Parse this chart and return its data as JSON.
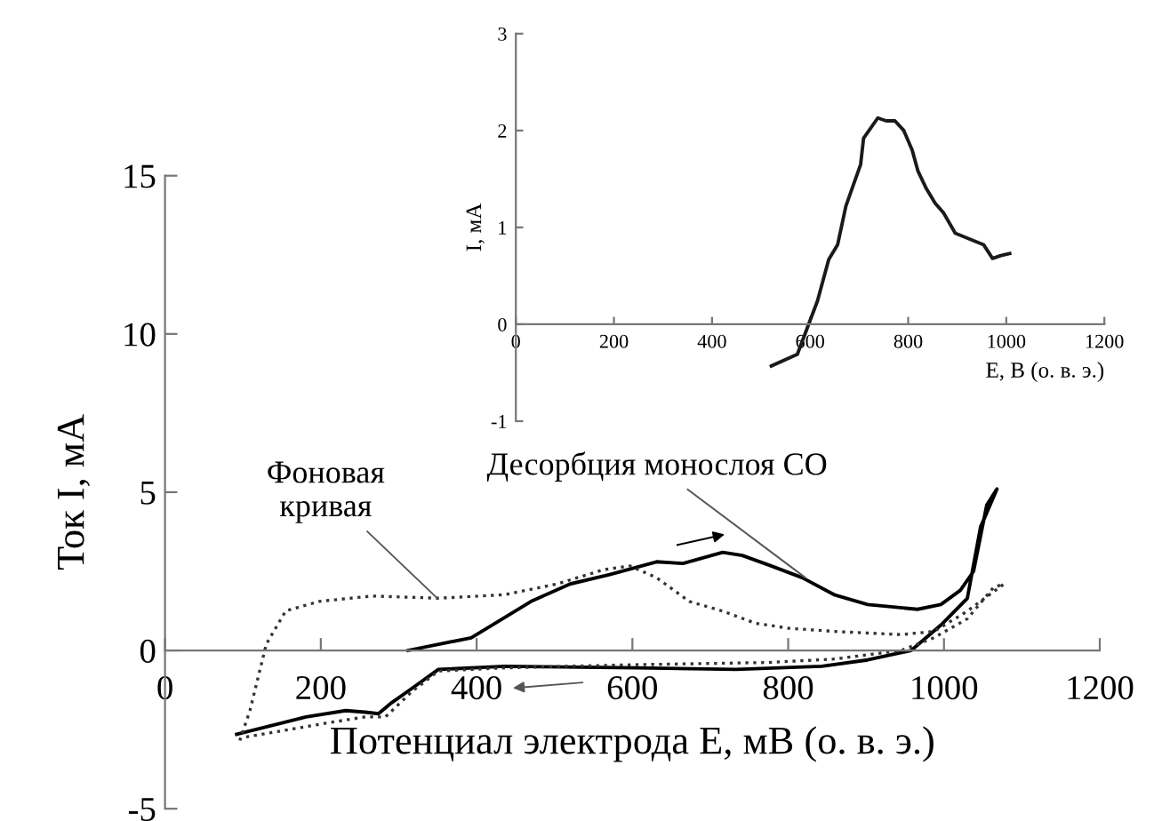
{
  "chart_data": [
    {
      "type": "line",
      "xlabel": "Потенциал электрода E, мВ (о. в. э.)",
      "ylabel": "Ток I, мА",
      "xlim": [
        0,
        1200
      ],
      "ylim": [
        -5,
        15
      ],
      "xticks": [
        0,
        200,
        400,
        600,
        800,
        1000,
        1200
      ],
      "yticks": [
        -5,
        0,
        5,
        10,
        15
      ],
      "series": [
        {
          "color": "#000000",
          "line_style": "solid",
          "x": [
            312,
            393,
            470,
            520,
            571,
            631,
            665,
            716,
            741,
            775,
            818,
            860,
            902,
            966,
            996,
            1021,
            1038,
            1055,
            1068,
            1047,
            1030,
            996,
            958,
            902,
            843,
            733,
            605,
            436,
            351,
            317,
            291,
            274,
            257,
            232,
            181,
            92
          ],
          "values": [
            0,
            0.4,
            1.55,
            2.1,
            2.4,
            2.8,
            2.75,
            3.1,
            3.0,
            2.7,
            2.3,
            1.75,
            1.45,
            1.3,
            1.45,
            1.9,
            2.5,
            4.6,
            5.1,
            3.9,
            1.65,
            0.8,
            0,
            -0.3,
            -0.5,
            -0.6,
            -0.55,
            -0.5,
            -0.6,
            -1.2,
            -1.65,
            -2.0,
            -1.95,
            -1.9,
            -2.1,
            -2.65
          ]
        },
        {
          "color": "#333333",
          "line_style": "dotted",
          "x": [
            96,
            109,
            130,
            155,
            198,
            266,
            351,
            436,
            503,
            563,
            597,
            631,
            673,
            716,
            758,
            801,
            860,
            945,
            987,
            1030,
            1077,
            1064,
            1030,
            987,
            945,
            860,
            775,
            605,
            436,
            351,
            317,
            283,
            257,
            206,
            100
          ],
          "values": [
            -2.85,
            -1.9,
            0.2,
            1.25,
            1.55,
            1.72,
            1.65,
            1.76,
            2.1,
            2.55,
            2.67,
            2.3,
            1.55,
            1.24,
            0.86,
            0.7,
            0.6,
            0.5,
            0.6,
            1.24,
            2.1,
            2.0,
            1.0,
            0.4,
            0,
            -0.27,
            -0.38,
            -0.45,
            -0.55,
            -0.65,
            -1.3,
            -2.1,
            -2.1,
            -2.3,
            -2.75
          ]
        }
      ],
      "annotations": [
        {
          "text": "Фоновая\nкривая",
          "x": 349,
          "y": 1.66
        },
        {
          "text": "Десорбция монослоя CO",
          "x": 822,
          "y": 2.3
        }
      ]
    },
    {
      "type": "line",
      "xlabel": "E, В (о. в. э.)",
      "ylabel": "I, мА",
      "xlim": [
        0,
        1200
      ],
      "ylim": [
        -1,
        3
      ],
      "xticks": [
        0,
        200,
        400,
        600,
        800,
        1000,
        1200
      ],
      "yticks": [
        -1,
        0,
        1,
        2,
        3
      ],
      "grid": false,
      "series": [
        {
          "color": "#1a1a1a",
          "line_style": "solid",
          "x": [
            521,
            574,
            597,
            615,
            638,
            656,
            673,
            703,
            709,
            738,
            755,
            773,
            791,
            808,
            820,
            837,
            855,
            872,
            896,
            925,
            954,
            972,
            989,
            1007
          ],
          "values": [
            -0.43,
            -0.31,
            0,
            0.24,
            0.67,
            0.82,
            1.22,
            1.65,
            1.92,
            2.13,
            2.1,
            2.1,
            2.0,
            1.8,
            1.58,
            1.4,
            1.25,
            1.15,
            0.94,
            0.88,
            0.82,
            0.68,
            0.71,
            0.73
          ]
        }
      ]
    }
  ]
}
